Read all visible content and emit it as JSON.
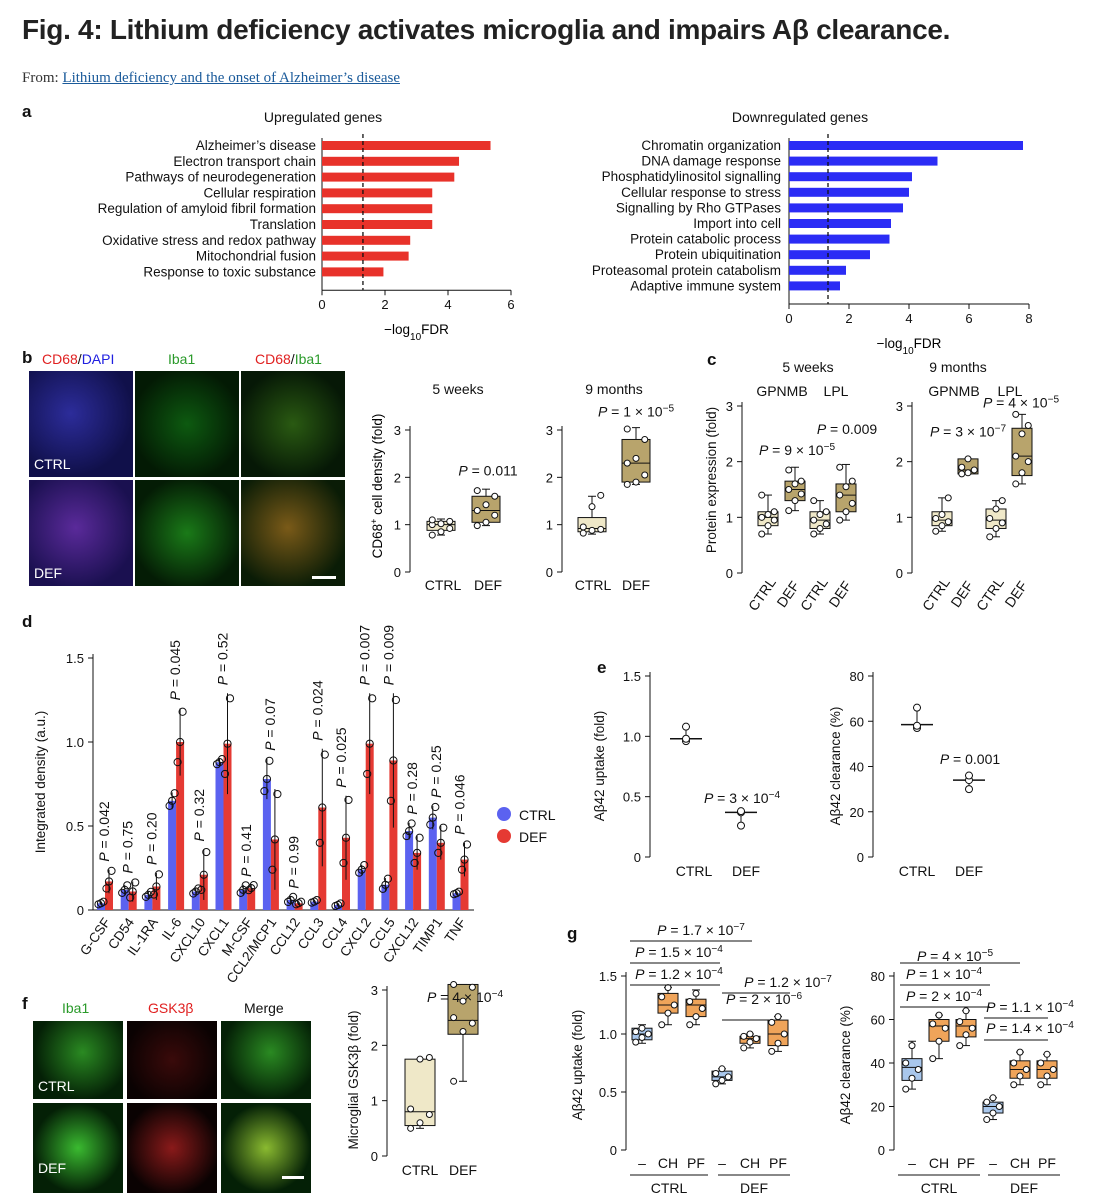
{
  "header": {
    "title": "Fig. 4: Lithium deficiency activates microglia and impairs Aβ clearance.",
    "from_label": "From:",
    "from_link": "Lithium deficiency and the onset of Alzheimer’s disease"
  },
  "colors": {
    "red": "#e8322a",
    "blue": "#2b2cf5",
    "ctrl_bar": "#5b62f0",
    "def_bar": "#e53a33",
    "box_ctrl": "#efe8c8",
    "box_def": "#b8a46c",
    "box_light": "#a9c7ec",
    "box_orange": "#efa45a"
  },
  "panel_labels": {
    "a": "a",
    "b": "b",
    "c": "c",
    "d": "d",
    "e": "e",
    "f": "f",
    "g": "g"
  },
  "chart_data": [
    {
      "id": "a_up",
      "type": "bar",
      "orientation": "horizontal",
      "title": "Upregulated genes",
      "xlabel": "−log10FDR",
      "xlim": [
        0,
        6
      ],
      "xticks": [
        "0",
        "2",
        "4",
        "6"
      ],
      "threshold": 1.3,
      "categories": [
        "Alzheimer’s disease",
        "Electron transport chain",
        "Pathways of neurodegeneration",
        "Cellular respiration",
        "Regulation of amyloid fibril formation",
        "Translation",
        "Oxidative stress and redox pathway",
        "Mitochondrial fusion",
        "Response to toxic substance"
      ],
      "values": [
        5.35,
        4.35,
        4.2,
        3.5,
        3.5,
        3.5,
        2.8,
        2.75,
        1.95
      ]
    },
    {
      "id": "a_down",
      "type": "bar",
      "orientation": "horizontal",
      "title": "Downregulated genes",
      "xlabel": "−log10FDR",
      "xlim": [
        0,
        8
      ],
      "xticks": [
        "0",
        "2",
        "4",
        "6",
        "8"
      ],
      "threshold": 1.3,
      "categories": [
        "Chromatin organization",
        "DNA damage response",
        "Phosphatidylinositol signalling",
        "Cellular response to stress",
        "Signalling by Rho GTPases",
        "Import into cell",
        "Protein catabolic process",
        "Protein ubiquitination",
        "Proteasomal protein catabolism",
        "Adaptive immune system"
      ],
      "values": [
        7.8,
        4.95,
        4.1,
        4.0,
        3.8,
        3.4,
        3.35,
        2.7,
        1.9,
        1.7
      ]
    },
    {
      "id": "b_5w",
      "type": "box",
      "title": "5 weeks",
      "ylabel": "CD68+ cell density (fold)",
      "ylim": [
        0,
        3
      ],
      "yticks": [
        "0",
        "1",
        "2",
        "3"
      ],
      "categories": [
        "CTRL",
        "DEF"
      ],
      "pvalue": "P = 0.011",
      "boxes": [
        {
          "q1": 0.88,
          "med": 1.0,
          "q3": 1.07,
          "lo": 0.78,
          "hi": 1.12,
          "pts": [
            0.78,
            0.85,
            0.92,
            1.0,
            1.02,
            1.07,
            1.1
          ]
        },
        {
          "q1": 1.05,
          "med": 1.3,
          "q3": 1.6,
          "lo": 0.98,
          "hi": 1.75,
          "pts": [
            0.98,
            1.05,
            1.2,
            1.3,
            1.42,
            1.6,
            1.72
          ]
        }
      ]
    },
    {
      "id": "b_9m",
      "type": "box",
      "title": "9 months",
      "ylabel": "",
      "ylim": [
        0,
        3
      ],
      "yticks": [
        "0",
        "1",
        "2",
        "3"
      ],
      "categories": [
        "CTRL",
        "DEF"
      ],
      "pvalue": "P = 1 × 10−5",
      "boxes": [
        {
          "q1": 0.85,
          "med": 0.92,
          "q3": 1.15,
          "lo": 0.8,
          "hi": 1.6,
          "pts": [
            0.82,
            0.88,
            0.9,
            0.95,
            1.38,
            1.62
          ]
        },
        {
          "q1": 1.9,
          "med": 2.3,
          "q3": 2.8,
          "lo": 1.85,
          "hi": 3.05,
          "pts": [
            1.85,
            1.9,
            2.05,
            2.3,
            2.4,
            2.8,
            3.02
          ]
        }
      ]
    },
    {
      "id": "c_5w",
      "type": "box",
      "title": "5 weeks",
      "ylabel": "Protein expression (fold)",
      "ylim": [
        0,
        3
      ],
      "yticks": [
        "0",
        "1",
        "2",
        "3"
      ],
      "groups": [
        "GPNMB",
        "LPL"
      ],
      "categories": [
        "CTRL",
        "DEF",
        "CTRL",
        "DEF"
      ],
      "pvalues": [
        "P = 9 × 10−5",
        "P = 0.009"
      ],
      "boxes": [
        {
          "q1": 0.85,
          "med": 1.0,
          "q3": 1.1,
          "lo": 0.7,
          "hi": 1.4,
          "pts": [
            0.7,
            0.85,
            0.95,
            1.0,
            1.05,
            1.1,
            1.4
          ]
        },
        {
          "q1": 1.3,
          "med": 1.5,
          "q3": 1.65,
          "lo": 1.12,
          "hi": 1.9,
          "pts": [
            1.12,
            1.3,
            1.42,
            1.5,
            1.6,
            1.65,
            1.85
          ]
        },
        {
          "q1": 0.8,
          "med": 0.95,
          "q3": 1.1,
          "lo": 0.7,
          "hi": 1.3,
          "pts": [
            0.7,
            0.8,
            0.88,
            0.95,
            1.05,
            1.1,
            1.3
          ]
        },
        {
          "q1": 1.1,
          "med": 1.4,
          "q3": 1.6,
          "lo": 0.95,
          "hi": 1.95,
          "pts": [
            0.95,
            1.1,
            1.25,
            1.4,
            1.55,
            1.65,
            1.9
          ]
        }
      ]
    },
    {
      "id": "c_9m",
      "type": "box",
      "title": "9 months",
      "ylabel": "",
      "ylim": [
        0,
        3
      ],
      "yticks": [
        "0",
        "1",
        "2",
        "3"
      ],
      "groups": [
        "GPNMB",
        "LPL"
      ],
      "categories": [
        "CTRL",
        "DEF",
        "CTRL",
        "DEF"
      ],
      "pvalues": [
        "P = 3 × 10−7",
        "P = 4 × 10−5"
      ],
      "boxes": [
        {
          "q1": 0.85,
          "med": 0.95,
          "q3": 1.1,
          "lo": 0.75,
          "hi": 1.35,
          "pts": [
            0.75,
            0.85,
            0.92,
            0.98,
            1.05,
            1.35
          ]
        },
        {
          "q1": 1.78,
          "med": 1.85,
          "q3": 2.05,
          "lo": 1.78,
          "hi": 2.05,
          "pts": [
            1.78,
            1.8,
            1.85,
            1.9,
            2.05
          ]
        },
        {
          "q1": 0.8,
          "med": 0.95,
          "q3": 1.15,
          "lo": 0.65,
          "hi": 1.3,
          "pts": [
            0.65,
            0.8,
            0.9,
            0.98,
            1.15,
            1.3
          ]
        },
        {
          "q1": 1.75,
          "med": 2.1,
          "q3": 2.6,
          "lo": 1.6,
          "hi": 2.85,
          "pts": [
            1.6,
            1.8,
            2.0,
            2.1,
            2.5,
            2.65,
            2.85
          ]
        }
      ]
    },
    {
      "id": "d",
      "type": "bar",
      "title": "",
      "ylabel": "Integrated density (a.u.)",
      "ylim": [
        0,
        1.5
      ],
      "yticks": [
        "0",
        "0.5",
        "1.0",
        "1.5"
      ],
      "legend": [
        "CTRL",
        "DEF"
      ],
      "categories": [
        "G-CSF",
        "CD54",
        "IL-1RA",
        "IL-6",
        "CXCL10",
        "CXCL1",
        "M-CSF",
        "CCL2/MCP1",
        "CCL12",
        "CCL3",
        "CCL4",
        "CXCL2",
        "CCL5",
        "CXCL12",
        "TIMP1",
        "TNF"
      ],
      "pvalues": [
        "P = 0.042",
        "P = 0.75",
        "P = 0.20",
        "P = 0.045",
        "P = 0.32",
        "P = 0.52",
        "P = 0.41",
        "P = 0.07",
        "P = 0.99",
        "P = 0.024",
        "P = 0.025",
        "P = 0.007",
        "P = 0.009",
        "P = 0.28",
        "P = 0.25",
        "P = 0.046"
      ],
      "series": [
        {
          "name": "CTRL",
          "values": [
            0.04,
            0.12,
            0.09,
            0.65,
            0.11,
            0.88,
            0.12,
            0.78,
            0.06,
            0.05,
            0.03,
            0.24,
            0.15,
            0.47,
            0.55,
            0.1
          ]
        },
        {
          "name": "DEF",
          "values": [
            0.17,
            0.11,
            0.14,
            1.0,
            0.21,
            0.99,
            0.13,
            0.42,
            0.04,
            0.61,
            0.43,
            0.99,
            0.89,
            0.34,
            0.4,
            0.3
          ]
        }
      ],
      "errors": [
        {
          "name": "CTRL",
          "values": [
            0.01,
            0.03,
            0.02,
            0.05,
            0.02,
            0.02,
            0.03,
            0.12,
            0.02,
            0.01,
            0.01,
            0.03,
            0.04,
            0.05,
            0.07,
            0.01
          ]
        },
        {
          "name": "DEF",
          "values": [
            0.07,
            0.06,
            0.08,
            0.2,
            0.15,
            0.3,
            0.02,
            0.3,
            0.01,
            0.35,
            0.25,
            0.3,
            0.4,
            0.1,
            0.1,
            0.1
          ]
        }
      ]
    },
    {
      "id": "e_uptake",
      "type": "dot",
      "ylabel": "Aβ42 uptake (fold)",
      "ylim": [
        0,
        1.5
      ],
      "yticks": [
        "0",
        "0.5",
        "1.0",
        "1.5"
      ],
      "categories": [
        "CTRL",
        "DEF"
      ],
      "pvalue": "P = 3 × 10−4",
      "groups": [
        {
          "mean": 0.98,
          "pts": [
            0.96,
            0.98,
            1.08
          ]
        },
        {
          "mean": 0.37,
          "pts": [
            0.26,
            0.37,
            0.38
          ]
        }
      ]
    },
    {
      "id": "e_clear",
      "type": "dot",
      "ylabel": "Aβ42 clearance (%)",
      "ylim": [
        0,
        80
      ],
      "yticks": [
        "0",
        "20",
        "40",
        "60",
        "80"
      ],
      "categories": [
        "CTRL",
        "DEF"
      ],
      "pvalue": "P = 0.001",
      "groups": [
        {
          "mean": 58.5,
          "pts": [
            57,
            58,
            66
          ]
        },
        {
          "mean": 34,
          "pts": [
            30,
            34,
            36
          ]
        }
      ]
    },
    {
      "id": "f",
      "type": "box",
      "title": "",
      "ylabel": "Microglial GSK3β (fold)",
      "ylim": [
        0,
        3
      ],
      "yticks": [
        "0",
        "1",
        "2",
        "3"
      ],
      "categories": [
        "CTRL",
        "DEF"
      ],
      "pvalue": "P = 4 × 10−4",
      "boxes": [
        {
          "q1": 0.55,
          "med": 0.8,
          "q3": 1.75,
          "lo": 0.5,
          "hi": 1.75,
          "pts": [
            0.5,
            0.6,
            0.75,
            0.85,
            1.75,
            1.78
          ]
        },
        {
          "q1": 2.2,
          "med": 2.45,
          "q3": 3.1,
          "lo": 1.35,
          "hi": 3.1,
          "pts": [
            1.35,
            2.25,
            2.4,
            2.5,
            2.8,
            3.05,
            3.1
          ]
        }
      ]
    },
    {
      "id": "g_uptake",
      "type": "box",
      "ylabel": "Aβ42 uptake (fold)",
      "ylim": [
        0,
        1.5
      ],
      "yticks": [
        "0",
        "0.5",
        "1.0",
        "1.5"
      ],
      "categories": [
        "–",
        "CH",
        "PF",
        "–",
        "CH",
        "PF"
      ],
      "groups": [
        "CTRL",
        "DEF"
      ],
      "pvalues": [
        "P = 1.7 × 10−7",
        "P = 1.5 × 10−4",
        "P = 1.2 × 10−4",
        "P = 1.2 × 10−7",
        "P = 2 × 10−6"
      ],
      "boxes": [
        {
          "q1": 0.95,
          "med": 1.0,
          "q3": 1.05,
          "lo": 0.92,
          "hi": 1.08,
          "pts": [
            0.93,
            0.97,
            1.0,
            1.02,
            1.05
          ]
        },
        {
          "q1": 1.18,
          "med": 1.25,
          "q3": 1.35,
          "lo": 1.08,
          "hi": 1.4,
          "pts": [
            1.08,
            1.18,
            1.25,
            1.32,
            1.4
          ]
        },
        {
          "q1": 1.15,
          "med": 1.25,
          "q3": 1.3,
          "lo": 1.08,
          "hi": 1.38,
          "pts": [
            1.08,
            1.15,
            1.22,
            1.28,
            1.35
          ]
        },
        {
          "q1": 0.6,
          "med": 0.63,
          "q3": 0.68,
          "lo": 0.57,
          "hi": 0.7,
          "pts": [
            0.57,
            0.6,
            0.63,
            0.66,
            0.7
          ]
        },
        {
          "q1": 0.92,
          "med": 0.96,
          "q3": 0.98,
          "lo": 0.88,
          "hi": 1.0,
          "pts": [
            0.88,
            0.93,
            0.96,
            0.98,
            1.0
          ]
        },
        {
          "q1": 0.9,
          "med": 1.0,
          "q3": 1.12,
          "lo": 0.85,
          "hi": 1.15,
          "pts": [
            0.85,
            0.92,
            1.0,
            1.1,
            1.15
          ]
        }
      ]
    },
    {
      "id": "g_clear",
      "type": "box",
      "ylabel": "Aβ42 clearance (%)",
      "ylim": [
        0,
        80
      ],
      "yticks": [
        "0",
        "20",
        "40",
        "60",
        "80"
      ],
      "categories": [
        "–",
        "CH",
        "PF",
        "–",
        "CH",
        "PF"
      ],
      "groups": [
        "CTRL",
        "DEF"
      ],
      "pvalues": [
        "P = 4 × 10−5",
        "P = 1 × 10−4",
        "P = 2 × 10−4",
        "P = 1.1 × 10−4",
        "P = 1.4 × 10−4"
      ],
      "boxes": [
        {
          "q1": 32,
          "med": 38,
          "q3": 42,
          "lo": 28,
          "hi": 50,
          "pts": [
            28,
            33,
            37,
            40,
            48
          ]
        },
        {
          "q1": 50,
          "med": 57,
          "q3": 60,
          "lo": 42,
          "hi": 62,
          "pts": [
            42,
            50,
            56,
            58,
            62
          ]
        },
        {
          "q1": 52,
          "med": 57,
          "q3": 60,
          "lo": 48,
          "hi": 64,
          "pts": [
            48,
            53,
            56,
            59,
            64
          ]
        },
        {
          "q1": 17,
          "med": 20,
          "q3": 22,
          "lo": 14,
          "hi": 24,
          "pts": [
            14,
            17,
            20,
            22,
            24
          ]
        },
        {
          "q1": 33,
          "med": 37,
          "q3": 41,
          "lo": 30,
          "hi": 45,
          "pts": [
            30,
            34,
            37,
            40,
            45
          ]
        },
        {
          "q1": 33,
          "med": 37,
          "q3": 41,
          "lo": 30,
          "hi": 44,
          "pts": [
            30,
            34,
            37,
            40,
            44
          ]
        }
      ]
    }
  ],
  "micrographs": {
    "b_headers": [
      "CD68",
      "/",
      "DAPI",
      "Iba1",
      "CD68",
      "/",
      "Iba1"
    ],
    "b_rows": [
      "CTRL",
      "DEF"
    ],
    "f_headers": [
      "Iba1",
      "GSK3β",
      "Merge"
    ],
    "f_rows": [
      "CTRL",
      "DEF"
    ]
  }
}
